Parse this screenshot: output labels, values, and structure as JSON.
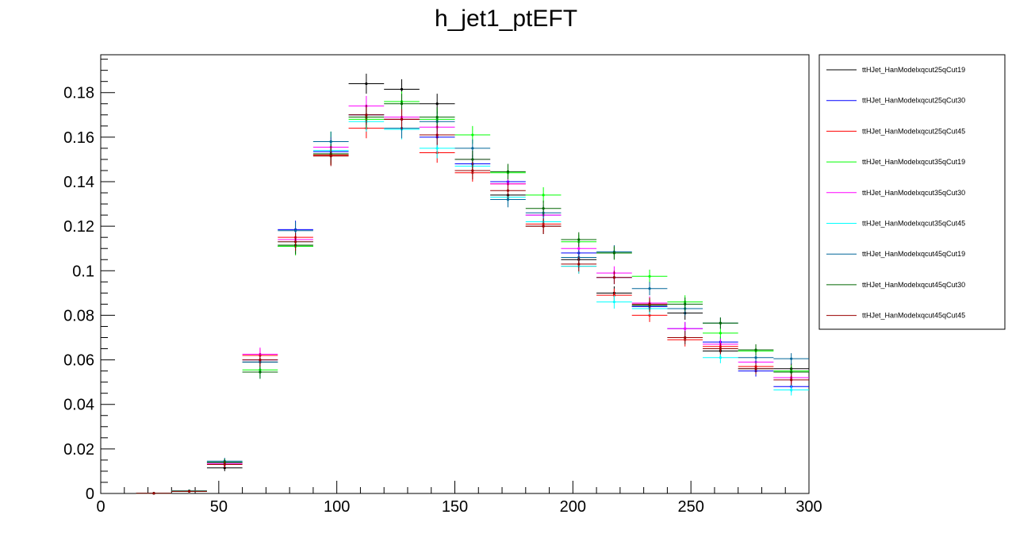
{
  "chart_data": {
    "type": "scatter",
    "title": "h_jet1_ptEFT",
    "xlabel": "",
    "ylabel": "",
    "xlim": [
      0,
      300
    ],
    "ylim": [
      0,
      0.197
    ],
    "x_ticks": [
      0,
      50,
      100,
      150,
      200,
      250,
      300
    ],
    "y_ticks": [
      0,
      0.02,
      0.04,
      0.06,
      0.08,
      0.1,
      0.12,
      0.14,
      0.16,
      0.18
    ],
    "x_tick_labels": [
      "0",
      "50",
      "100",
      "150",
      "200",
      "250",
      "300"
    ],
    "y_tick_labels": [
      "0",
      "0.02",
      "0.04",
      "0.06",
      "0.08",
      "0.1",
      "0.12",
      "0.14",
      "0.16",
      "0.18"
    ],
    "bin_width": 15,
    "bin_centers": [
      22.5,
      37.5,
      52.5,
      67.5,
      82.5,
      97.5,
      112.5,
      127.5,
      142.5,
      157.5,
      172.5,
      187.5,
      202.5,
      217.5,
      232.5,
      247.5,
      262.5,
      277.5,
      292.5
    ],
    "grid": false,
    "legend_position": "right",
    "series": [
      {
        "name": "ttHJet_HanModelxqcut25qCut19",
        "color": "#000000",
        "values": [
          0.0001,
          0.001,
          0.0115,
          0.059,
          0.111,
          0.152,
          0.184,
          0.1815,
          0.175,
          0.148,
          0.134,
          0.12,
          0.105,
          0.09,
          0.084,
          0.081,
          0.064,
          0.056,
          0.056
        ],
        "errors": [
          0.0003,
          0.0005,
          0.0015,
          0.003,
          0.004,
          0.0045,
          0.0045,
          0.0045,
          0.0045,
          0.004,
          0.0035,
          0.0035,
          0.0033,
          0.003,
          0.003,
          0.003,
          0.0025,
          0.0025,
          0.0025
        ]
      },
      {
        "name": "ttHJet_HanModelxqcut25qCut30",
        "color": "#0000ff",
        "values": [
          0.0001,
          0.0011,
          0.014,
          0.06,
          0.1185,
          0.1535,
          0.17,
          0.168,
          0.16,
          0.148,
          0.14,
          0.125,
          0.108,
          0.097,
          0.084,
          0.074,
          0.068,
          0.055,
          0.048
        ],
        "errors": [
          0.0003,
          0.0005,
          0.0015,
          0.003,
          0.004,
          0.0045,
          0.0045,
          0.0045,
          0.0045,
          0.004,
          0.0035,
          0.0035,
          0.0033,
          0.003,
          0.003,
          0.003,
          0.0025,
          0.0025,
          0.0025
        ]
      },
      {
        "name": "ttHJet_HanModelxqcut25qCut45",
        "color": "#ff0000",
        "values": [
          0.0,
          0.001,
          0.0135,
          0.062,
          0.115,
          0.152,
          0.164,
          0.168,
          0.153,
          0.144,
          0.139,
          0.121,
          0.102,
          0.089,
          0.08,
          0.069,
          0.066,
          0.057,
          0.052
        ],
        "errors": [
          0.0003,
          0.0005,
          0.0015,
          0.003,
          0.004,
          0.0045,
          0.0045,
          0.0045,
          0.0045,
          0.004,
          0.0035,
          0.0035,
          0.0033,
          0.003,
          0.003,
          0.003,
          0.0025,
          0.0025,
          0.0025
        ]
      },
      {
        "name": "ttHJet_HanModelxqcut35qCut19",
        "color": "#00ff00",
        "values": [
          0.0001,
          0.0012,
          0.014,
          0.0555,
          0.111,
          0.158,
          0.168,
          0.176,
          0.168,
          0.161,
          0.144,
          0.134,
          0.113,
          0.108,
          0.0975,
          0.086,
          0.072,
          0.064,
          0.055
        ],
        "errors": [
          0.0003,
          0.0005,
          0.0015,
          0.003,
          0.004,
          0.0045,
          0.0045,
          0.0045,
          0.0045,
          0.004,
          0.0035,
          0.0035,
          0.0033,
          0.003,
          0.003,
          0.003,
          0.0025,
          0.0025,
          0.0025
        ]
      },
      {
        "name": "ttHJet_HanModelxqcut35qCut30",
        "color": "#ff00ff",
        "values": [
          0.0001,
          0.0011,
          0.0135,
          0.0625,
          0.114,
          0.1555,
          0.174,
          0.169,
          0.1645,
          0.15,
          0.139,
          0.125,
          0.11,
          0.099,
          0.0855,
          0.074,
          0.067,
          0.059,
          0.052
        ],
        "errors": [
          0.0003,
          0.0005,
          0.0015,
          0.003,
          0.004,
          0.0045,
          0.0045,
          0.0045,
          0.0045,
          0.004,
          0.0035,
          0.0035,
          0.0033,
          0.003,
          0.003,
          0.003,
          0.0025,
          0.0025,
          0.0025
        ]
      },
      {
        "name": "ttHJet_HanModelxqcut35qCut45",
        "color": "#00ffff",
        "values": [
          0.0001,
          0.0011,
          0.014,
          0.0545,
          0.113,
          0.154,
          0.167,
          0.1635,
          0.155,
          0.147,
          0.133,
          0.122,
          0.102,
          0.086,
          0.083,
          0.07,
          0.061,
          0.056,
          0.0465
        ],
        "errors": [
          0.0003,
          0.0005,
          0.0015,
          0.003,
          0.004,
          0.0045,
          0.0045,
          0.0045,
          0.0045,
          0.004,
          0.0035,
          0.0035,
          0.0033,
          0.003,
          0.003,
          0.003,
          0.0025,
          0.0025,
          0.0025
        ]
      },
      {
        "name": "ttHJet_HanModelxqcut45qCut19",
        "color": "#006699",
        "values": [
          0.0001,
          0.0011,
          0.0145,
          0.059,
          0.118,
          0.158,
          0.17,
          0.164,
          0.167,
          0.155,
          0.132,
          0.126,
          0.106,
          0.1085,
          0.092,
          0.083,
          0.0765,
          0.061,
          0.0605
        ],
        "errors": [
          0.0003,
          0.0005,
          0.0015,
          0.003,
          0.004,
          0.0045,
          0.0045,
          0.0045,
          0.0045,
          0.004,
          0.0035,
          0.0035,
          0.0033,
          0.003,
          0.003,
          0.003,
          0.0025,
          0.0025,
          0.0025
        ]
      },
      {
        "name": "ttHJet_HanModelxqcut45qCut30",
        "color": "#006600",
        "values": [
          0.0001,
          0.001,
          0.014,
          0.0545,
          0.1115,
          0.1525,
          0.169,
          0.175,
          0.169,
          0.15,
          0.1445,
          0.128,
          0.114,
          0.108,
          0.0845,
          0.085,
          0.0765,
          0.0645,
          0.0545
        ],
        "errors": [
          0.0003,
          0.0005,
          0.0015,
          0.003,
          0.004,
          0.0045,
          0.0045,
          0.0045,
          0.0045,
          0.004,
          0.0035,
          0.0035,
          0.0033,
          0.003,
          0.003,
          0.003,
          0.0025,
          0.0025,
          0.0025
        ]
      },
      {
        "name": "ttHJet_HanModelxqcut45qCut45",
        "color": "#990000",
        "values": [
          0.0001,
          0.001,
          0.013,
          0.06,
          0.113,
          0.1515,
          0.17,
          0.168,
          0.161,
          0.145,
          0.136,
          0.12,
          0.103,
          0.097,
          0.085,
          0.07,
          0.065,
          0.056,
          0.051
        ],
        "errors": [
          0.0003,
          0.0005,
          0.0015,
          0.003,
          0.004,
          0.0045,
          0.0045,
          0.0045,
          0.0045,
          0.004,
          0.0035,
          0.0035,
          0.0033,
          0.003,
          0.003,
          0.003,
          0.0025,
          0.0025,
          0.0025
        ]
      }
    ]
  }
}
